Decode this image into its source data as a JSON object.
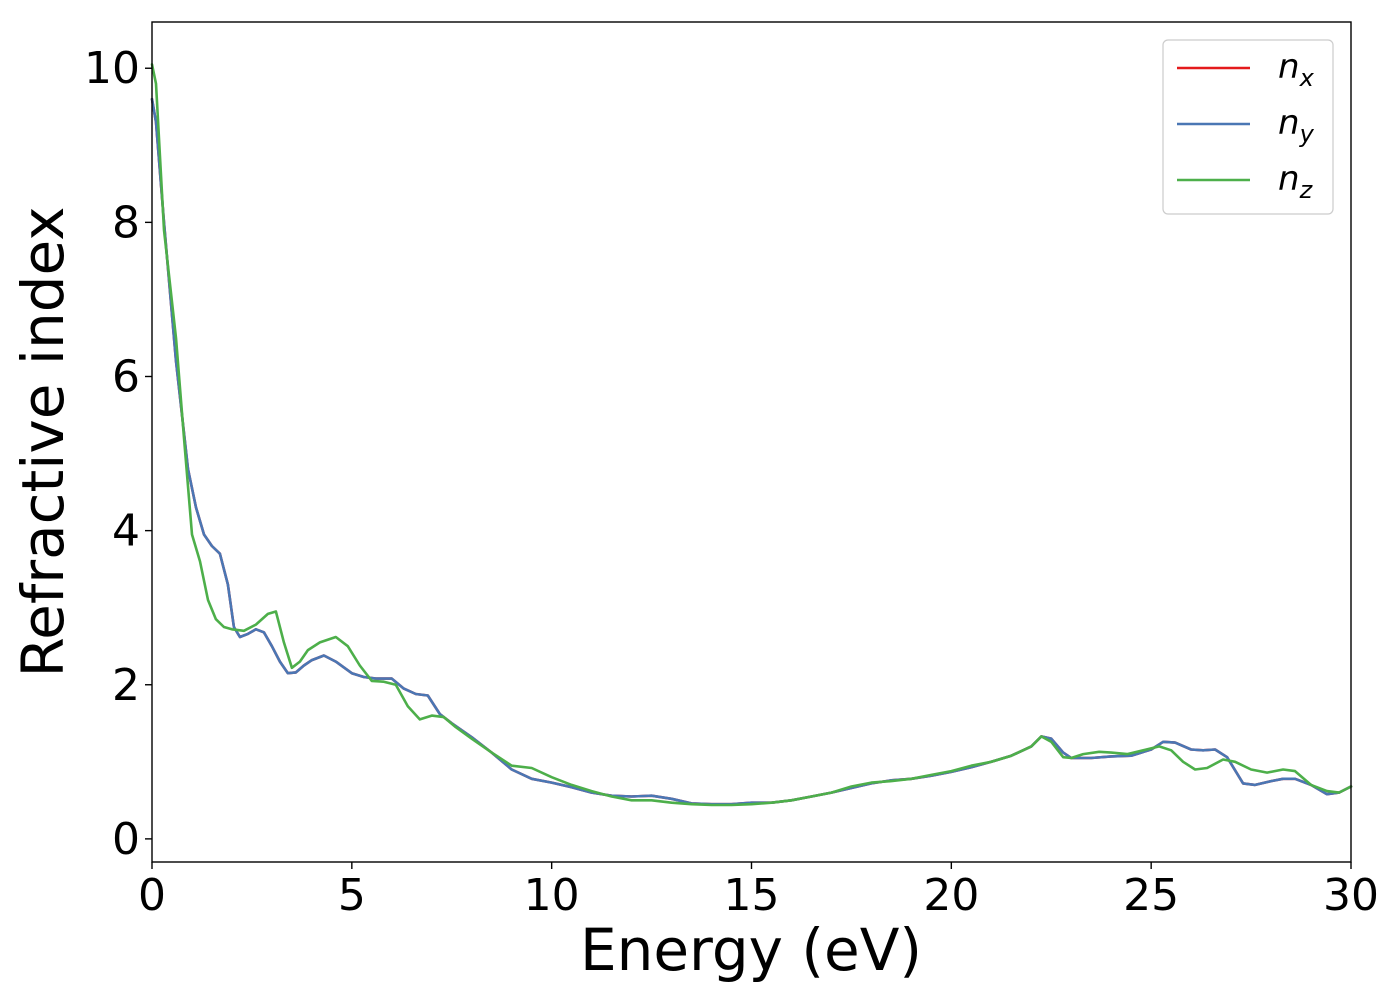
{
  "chart_data": {
    "type": "line",
    "title": "",
    "xlabel": "Energy (eV)",
    "ylabel": "Refractive index",
    "xlim": [
      0,
      30
    ],
    "ylim": [
      -0.3,
      10.6
    ],
    "x_ticks": [
      0,
      5,
      10,
      15,
      20,
      25,
      30
    ],
    "y_ticks": [
      0,
      2,
      4,
      6,
      8,
      10
    ],
    "grid": false,
    "legend_position": "top-right",
    "series": [
      {
        "name": "n",
        "subscript": "x",
        "color": "#e41a1c",
        "x": [
          0,
          0.1,
          0.3,
          0.6,
          0.9,
          1.1,
          1.3,
          1.5,
          1.7,
          1.9,
          2.05,
          2.2,
          2.4,
          2.6,
          2.8,
          3.0,
          3.2,
          3.4,
          3.6,
          3.8,
          4.0,
          4.3,
          4.6,
          5.0,
          5.3,
          5.6,
          6.0,
          6.3,
          6.6,
          6.9,
          7.2,
          7.5,
          8.0,
          8.5,
          9.0,
          9.5,
          10.0,
          10.5,
          11.0,
          11.5,
          12.0,
          12.5,
          13.0,
          13.5,
          14.0,
          14.5,
          15.0,
          15.5,
          16.0,
          16.5,
          17.0,
          17.5,
          18.0,
          18.5,
          19.0,
          19.5,
          20.0,
          20.5,
          21.0,
          21.5,
          22.0,
          22.25,
          22.5,
          22.8,
          23.0,
          23.5,
          24.0,
          24.5,
          25.0,
          25.3,
          25.6,
          26.0,
          26.3,
          26.6,
          26.9,
          27.3,
          27.6,
          28.0,
          28.3,
          28.6,
          29.0,
          29.4,
          29.7,
          30.0
        ],
        "y": [
          9.6,
          9.3,
          8.0,
          6.2,
          4.8,
          4.3,
          3.95,
          3.8,
          3.7,
          3.3,
          2.75,
          2.62,
          2.66,
          2.72,
          2.68,
          2.5,
          2.3,
          2.15,
          2.16,
          2.25,
          2.32,
          2.38,
          2.3,
          2.15,
          2.1,
          2.08,
          2.08,
          1.95,
          1.88,
          1.86,
          1.62,
          1.5,
          1.32,
          1.12,
          0.9,
          0.78,
          0.73,
          0.67,
          0.6,
          0.56,
          0.55,
          0.56,
          0.52,
          0.46,
          0.45,
          0.45,
          0.47,
          0.47,
          0.5,
          0.55,
          0.6,
          0.66,
          0.72,
          0.76,
          0.78,
          0.82,
          0.87,
          0.93,
          1.0,
          1.08,
          1.2,
          1.33,
          1.3,
          1.12,
          1.05,
          1.05,
          1.07,
          1.08,
          1.16,
          1.26,
          1.25,
          1.16,
          1.15,
          1.16,
          1.06,
          0.72,
          0.7,
          0.75,
          0.78,
          0.78,
          0.7,
          0.58,
          0.6,
          0.68
        ]
      },
      {
        "name": "n",
        "subscript": "y",
        "color": "#4a77b4",
        "x": [
          0,
          0.1,
          0.3,
          0.6,
          0.9,
          1.1,
          1.3,
          1.5,
          1.7,
          1.9,
          2.05,
          2.2,
          2.4,
          2.6,
          2.8,
          3.0,
          3.2,
          3.4,
          3.6,
          3.8,
          4.0,
          4.3,
          4.6,
          5.0,
          5.3,
          5.6,
          6.0,
          6.3,
          6.6,
          6.9,
          7.2,
          7.5,
          8.0,
          8.5,
          9.0,
          9.5,
          10.0,
          10.5,
          11.0,
          11.5,
          12.0,
          12.5,
          13.0,
          13.5,
          14.0,
          14.5,
          15.0,
          15.5,
          16.0,
          16.5,
          17.0,
          17.5,
          18.0,
          18.5,
          19.0,
          19.5,
          20.0,
          20.5,
          21.0,
          21.5,
          22.0,
          22.25,
          22.5,
          22.8,
          23.0,
          23.5,
          24.0,
          24.5,
          25.0,
          25.3,
          25.6,
          26.0,
          26.3,
          26.6,
          26.9,
          27.3,
          27.6,
          28.0,
          28.3,
          28.6,
          29.0,
          29.4,
          29.7,
          30.0
        ],
        "y": [
          9.6,
          9.3,
          8.0,
          6.2,
          4.8,
          4.3,
          3.95,
          3.8,
          3.7,
          3.3,
          2.75,
          2.62,
          2.66,
          2.72,
          2.68,
          2.5,
          2.3,
          2.15,
          2.16,
          2.25,
          2.32,
          2.38,
          2.3,
          2.15,
          2.1,
          2.08,
          2.08,
          1.95,
          1.88,
          1.86,
          1.62,
          1.5,
          1.32,
          1.12,
          0.9,
          0.78,
          0.73,
          0.67,
          0.6,
          0.56,
          0.55,
          0.56,
          0.52,
          0.46,
          0.45,
          0.45,
          0.47,
          0.47,
          0.5,
          0.55,
          0.6,
          0.66,
          0.72,
          0.76,
          0.78,
          0.82,
          0.87,
          0.93,
          1.0,
          1.08,
          1.2,
          1.33,
          1.3,
          1.12,
          1.05,
          1.05,
          1.07,
          1.08,
          1.16,
          1.26,
          1.25,
          1.16,
          1.15,
          1.16,
          1.06,
          0.72,
          0.7,
          0.75,
          0.78,
          0.78,
          0.7,
          0.58,
          0.6,
          0.68
        ]
      },
      {
        "name": "n",
        "subscript": "z",
        "color": "#4daf4a",
        "x": [
          0,
          0.1,
          0.3,
          0.6,
          0.8,
          1.0,
          1.2,
          1.4,
          1.6,
          1.8,
          2.0,
          2.3,
          2.6,
          2.9,
          3.1,
          3.3,
          3.5,
          3.7,
          3.9,
          4.2,
          4.6,
          4.9,
          5.2,
          5.5,
          5.8,
          6.1,
          6.4,
          6.7,
          7.0,
          7.3,
          7.6,
          8.0,
          8.5,
          9.0,
          9.5,
          10.0,
          10.5,
          11.0,
          11.5,
          12.0,
          12.5,
          13.0,
          13.5,
          14.0,
          14.5,
          15.0,
          15.5,
          16.0,
          16.5,
          17.0,
          17.5,
          18.0,
          18.5,
          19.0,
          19.5,
          20.0,
          20.5,
          21.0,
          21.5,
          22.0,
          22.25,
          22.5,
          22.8,
          23.0,
          23.3,
          23.7,
          24.0,
          24.4,
          24.8,
          25.2,
          25.5,
          25.8,
          26.1,
          26.4,
          26.8,
          27.1,
          27.5,
          27.9,
          28.3,
          28.6,
          29.0,
          29.4,
          29.7,
          30.0
        ],
        "y": [
          10.05,
          9.8,
          7.9,
          6.5,
          5.2,
          3.95,
          3.6,
          3.1,
          2.85,
          2.75,
          2.72,
          2.7,
          2.78,
          2.92,
          2.95,
          2.55,
          2.22,
          2.3,
          2.45,
          2.55,
          2.62,
          2.5,
          2.25,
          2.05,
          2.04,
          2.0,
          1.72,
          1.55,
          1.6,
          1.58,
          1.45,
          1.3,
          1.12,
          0.95,
          0.92,
          0.8,
          0.7,
          0.62,
          0.55,
          0.5,
          0.5,
          0.47,
          0.45,
          0.44,
          0.44,
          0.45,
          0.47,
          0.5,
          0.55,
          0.6,
          0.68,
          0.73,
          0.75,
          0.78,
          0.83,
          0.88,
          0.95,
          1.0,
          1.08,
          1.2,
          1.33,
          1.26,
          1.06,
          1.05,
          1.1,
          1.13,
          1.12,
          1.1,
          1.15,
          1.2,
          1.15,
          1.0,
          0.9,
          0.92,
          1.03,
          1.0,
          0.9,
          0.86,
          0.9,
          0.88,
          0.7,
          0.62,
          0.6,
          0.68
        ]
      }
    ]
  }
}
